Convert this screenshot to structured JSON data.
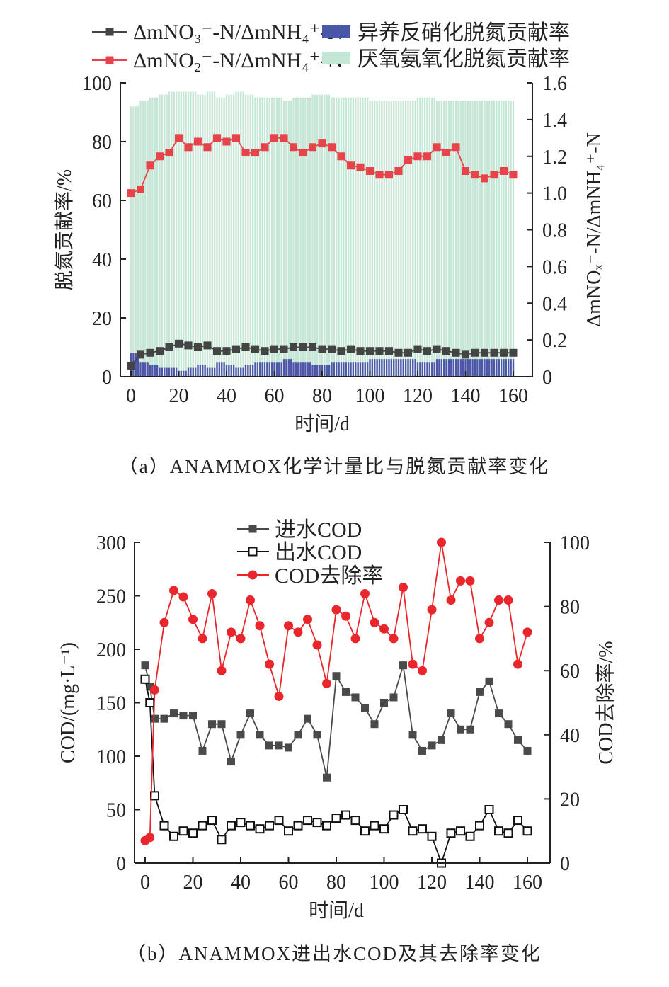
{
  "chart_data": [
    {
      "type": "bar+line",
      "caption": "（a）ANAMMOX化学计量比与脱氮贡献率变化",
      "xlabel": "时间/d",
      "ylabel": "脱氮贡献率/%",
      "y2label": "ΔmNOₓ⁻-N/ΔmNH₄⁺-N",
      "xlim": [
        0,
        160
      ],
      "ylim": [
        0,
        100
      ],
      "y2lim": [
        0,
        1.6
      ],
      "xticks": [
        "0",
        "20",
        "40",
        "60",
        "80",
        "100",
        "120",
        "140",
        "160"
      ],
      "yticks": [
        "0",
        "20",
        "40",
        "60",
        "80",
        "100"
      ],
      "y2ticks": [
        "0",
        "0.2",
        "0.4",
        "0.6",
        "0.8",
        "1.0",
        "1.2",
        "1.4",
        "1.6"
      ],
      "x": [
        0,
        4,
        8,
        12,
        16,
        20,
        24,
        28,
        32,
        36,
        40,
        44,
        48,
        52,
        56,
        60,
        64,
        68,
        72,
        76,
        80,
        84,
        88,
        92,
        96,
        100,
        104,
        108,
        112,
        116,
        120,
        124,
        128,
        132,
        136,
        140,
        144,
        148,
        152,
        156,
        160
      ],
      "series": [
        {
          "name": "ΔmNO₃⁻-N/ΔmNH₄⁺-N",
          "axis": "right",
          "kind": "line",
          "color": "#444444",
          "values": [
            0.06,
            0.12,
            0.13,
            0.14,
            0.16,
            0.18,
            0.17,
            0.16,
            0.17,
            0.14,
            0.14,
            0.15,
            0.16,
            0.15,
            0.14,
            0.15,
            0.15,
            0.16,
            0.16,
            0.16,
            0.15,
            0.15,
            0.14,
            0.15,
            0.14,
            0.14,
            0.14,
            0.14,
            0.13,
            0.13,
            0.15,
            0.14,
            0.15,
            0.14,
            0.13,
            0.12,
            0.13,
            0.13,
            0.13,
            0.13,
            0.13
          ]
        },
        {
          "name": "ΔmNO₂⁻-N/ΔmNH₄⁺-N",
          "axis": "right",
          "kind": "line",
          "color": "#e8434a",
          "values": [
            1.0,
            1.02,
            1.15,
            1.2,
            1.22,
            1.3,
            1.25,
            1.28,
            1.25,
            1.3,
            1.28,
            1.3,
            1.22,
            1.22,
            1.25,
            1.3,
            1.3,
            1.25,
            1.22,
            1.25,
            1.27,
            1.25,
            1.2,
            1.15,
            1.14,
            1.12,
            1.1,
            1.1,
            1.12,
            1.18,
            1.2,
            1.2,
            1.25,
            1.22,
            1.25,
            1.12,
            1.1,
            1.08,
            1.1,
            1.12,
            1.1
          ]
        },
        {
          "name": "异养反硝化脱氮贡献率",
          "axis": "left",
          "kind": "bar",
          "color": "#4a56a6",
          "values": [
            8,
            5,
            4,
            3,
            3,
            2,
            3,
            4,
            3,
            5,
            4,
            3,
            4,
            5,
            5,
            5,
            6,
            5,
            5,
            4,
            4,
            5,
            5,
            5,
            5,
            6,
            6,
            6,
            6,
            6,
            5,
            5,
            6,
            6,
            6,
            6,
            6,
            6,
            6,
            6,
            6
          ]
        },
        {
          "name": "厌氧氨氧化脱氮贡献率",
          "axis": "left",
          "kind": "bar",
          "color": "#c4e6d4",
          "values": [
            92,
            94,
            95,
            96,
            97,
            97,
            97,
            96,
            97,
            95,
            96,
            97,
            96,
            95,
            95,
            95,
            94,
            95,
            95,
            96,
            96,
            95,
            95,
            95,
            95,
            94,
            94,
            94,
            94,
            94,
            95,
            95,
            94,
            94,
            94,
            94,
            94,
            94,
            94,
            94,
            94
          ]
        }
      ]
    },
    {
      "type": "line",
      "caption": "（b）ANAMMOX进出水COD及其去除率变化",
      "xlabel": "时间/d",
      "ylabel": "COD/(mg·L⁻¹)",
      "y2label": "COD去除率/%",
      "xlim": [
        0,
        160
      ],
      "ylim": [
        0,
        300
      ],
      "y2lim": [
        0,
        100
      ],
      "xticks": [
        "0",
        "20",
        "40",
        "60",
        "80",
        "100",
        "120",
        "140",
        "160"
      ],
      "yticks": [
        "0",
        "50",
        "100",
        "150",
        "200",
        "250",
        "300"
      ],
      "y2ticks": [
        "0",
        "20",
        "40",
        "60",
        "80",
        "100"
      ],
      "x": [
        0,
        2,
        4,
        8,
        12,
        16,
        20,
        24,
        28,
        32,
        36,
        40,
        44,
        48,
        52,
        56,
        60,
        64,
        68,
        72,
        76,
        80,
        84,
        88,
        92,
        96,
        100,
        104,
        108,
        112,
        116,
        120,
        124,
        128,
        132,
        136,
        140,
        144,
        148,
        152,
        156,
        160
      ],
      "series": [
        {
          "name": "进水COD",
          "axis": "left",
          "marker": "filled-square",
          "color": "#4a4a4a",
          "values": [
            185,
            165,
            135,
            135,
            140,
            138,
            138,
            105,
            130,
            130,
            95,
            120,
            140,
            120,
            110,
            110,
            108,
            120,
            135,
            120,
            80,
            175,
            160,
            155,
            145,
            130,
            150,
            155,
            185,
            120,
            105,
            110,
            115,
            140,
            125,
            125,
            160,
            170,
            140,
            130,
            115,
            105
          ]
        },
        {
          "name": "出水COD",
          "axis": "left",
          "marker": "open-square",
          "color": "#111111",
          "values": [
            172,
            150,
            63,
            35,
            25,
            30,
            28,
            35,
            40,
            22,
            35,
            38,
            35,
            32,
            35,
            40,
            30,
            35,
            40,
            38,
            35,
            42,
            45,
            40,
            30,
            35,
            32,
            45,
            50,
            30,
            32,
            25,
            0,
            28,
            30,
            25,
            35,
            50,
            30,
            28,
            40,
            30
          ]
        },
        {
          "name": "COD去除率",
          "axis": "right",
          "marker": "filled-circle",
          "color": "#e8262b",
          "values": [
            7,
            8,
            54,
            75,
            85,
            83,
            76,
            70,
            84,
            60,
            72,
            70,
            82,
            74,
            62,
            52,
            74,
            72,
            76,
            68,
            56,
            79,
            77,
            70,
            84,
            75,
            73,
            70,
            86,
            62,
            60,
            79,
            100,
            82,
            88,
            88,
            70,
            75,
            82,
            82,
            62,
            72
          ]
        }
      ]
    }
  ]
}
